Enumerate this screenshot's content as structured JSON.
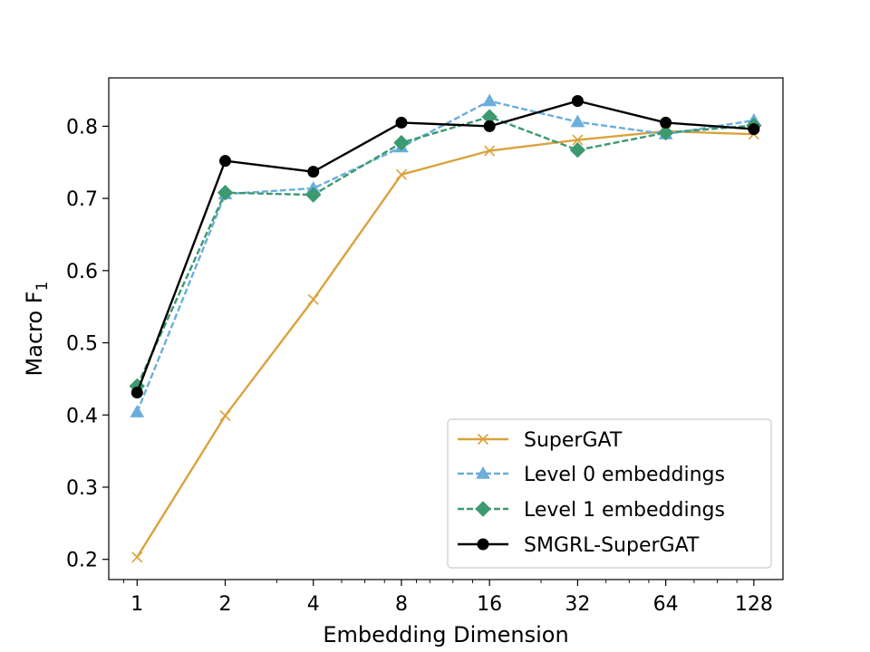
{
  "chart_data": {
    "type": "line",
    "title": "",
    "xlabel": "Embedding Dimension",
    "ylabel": "Macro F",
    "ylabel_subscript": "1",
    "x_scale": "log2",
    "x": [
      1,
      2,
      4,
      8,
      16,
      32,
      64,
      128
    ],
    "x_tick_labels": [
      "1",
      "2",
      "4",
      "8",
      "16",
      "32",
      "64",
      "128"
    ],
    "xlim": [
      0.8,
      161
    ],
    "ylim": [
      0.172,
      0.867
    ],
    "y_ticks": [
      0.2,
      0.3,
      0.4,
      0.5,
      0.6,
      0.7,
      0.8
    ],
    "y_tick_labels": [
      "0.2",
      "0.3",
      "0.4",
      "0.5",
      "0.6",
      "0.7",
      "0.8"
    ],
    "grid": false,
    "legend_position": "lower-right",
    "series": [
      {
        "name": "SuperGAT",
        "values": [
          0.203,
          0.399,
          0.56,
          0.733,
          0.766,
          0.781,
          0.793,
          0.789
        ],
        "color": "#DAA23A",
        "dash": "solid",
        "marker": "x"
      },
      {
        "name": "Level 0 embeddings",
        "values": [
          0.404,
          0.706,
          0.714,
          0.771,
          0.835,
          0.806,
          0.789,
          0.808
        ],
        "color": "#6AAEDB",
        "dash": "dashed",
        "marker": "triangle"
      },
      {
        "name": "Level 1 embeddings",
        "values": [
          0.44,
          0.708,
          0.705,
          0.777,
          0.813,
          0.767,
          0.791,
          0.801
        ],
        "color": "#3D9970",
        "dash": "dashed",
        "marker": "diamond"
      },
      {
        "name": "SMGRL-SuperGAT",
        "values": [
          0.431,
          0.752,
          0.737,
          0.805,
          0.8,
          0.835,
          0.805,
          0.796
        ],
        "color": "#000000",
        "dash": "solid",
        "marker": "circle"
      }
    ]
  }
}
